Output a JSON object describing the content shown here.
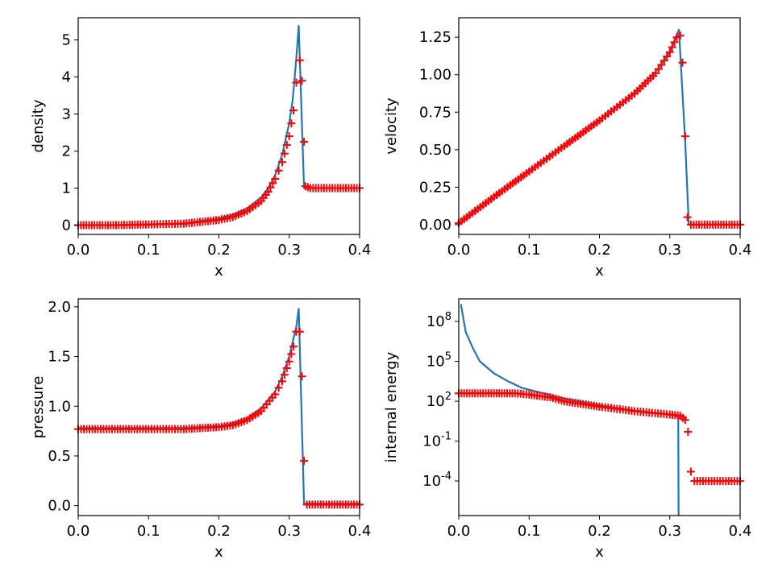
{
  "chart_data": [
    {
      "type": "line",
      "xlabel": "x",
      "ylabel": "density",
      "xlim": [
        0,
        0.4
      ],
      "ylim": [
        -0.25,
        5.6
      ],
      "xticks": [
        0,
        0.1,
        0.2,
        0.3,
        0.4
      ],
      "xticklabels": [
        "0.0",
        "0.1",
        "0.2",
        "0.3",
        "0.4"
      ],
      "yticks": [
        0,
        1,
        2,
        3,
        4,
        5
      ],
      "yticklabels": [
        "0",
        "1",
        "2",
        "3",
        "4",
        "5"
      ],
      "yscale": "linear",
      "series": [
        {
          "style": "line",
          "color": "#1f77b4",
          "points": [
            [
              0,
              0
            ],
            [
              0.05,
              0
            ],
            [
              0.1,
              0.01
            ],
            [
              0.15,
              0.05
            ],
            [
              0.2,
              0.18
            ],
            [
              0.22,
              0.28
            ],
            [
              0.24,
              0.45
            ],
            [
              0.26,
              0.75
            ],
            [
              0.27,
              1.0
            ],
            [
              0.28,
              1.35
            ],
            [
              0.29,
              1.9
            ],
            [
              0.3,
              2.75
            ],
            [
              0.305,
              3.4
            ],
            [
              0.31,
              4.5
            ],
            [
              0.3135,
              5.38
            ],
            [
              0.321,
              1.0
            ],
            [
              0.4,
              1.0
            ]
          ]
        },
        {
          "style": "marker",
          "color": "#ff0000",
          "marker": "+",
          "points": [
            [
              0,
              0.0
            ],
            [
              0.05,
              0.0
            ],
            [
              0.1,
              0.02
            ],
            [
              0.15,
              0.04
            ],
            [
              0.2,
              0.14
            ],
            [
              0.22,
              0.22
            ],
            [
              0.24,
              0.38
            ],
            [
              0.26,
              0.65
            ],
            [
              0.27,
              0.9
            ],
            [
              0.28,
              1.25
            ],
            [
              0.29,
              1.7
            ],
            [
              0.3,
              2.4
            ],
            [
              0.306,
              3.1
            ],
            [
              0.31,
              3.85
            ],
            [
              0.315,
              4.45
            ],
            [
              0.318,
              3.9
            ],
            [
              0.321,
              2.25
            ],
            [
              0.323,
              1.05
            ],
            [
              0.33,
              1.0
            ],
            [
              0.4,
              1.0
            ]
          ]
        }
      ]
    },
    {
      "type": "line",
      "xlabel": "x",
      "ylabel": "velocity",
      "xlim": [
        0,
        0.4
      ],
      "ylim": [
        -0.065,
        1.38
      ],
      "xticks": [
        0,
        0.1,
        0.2,
        0.3,
        0.4
      ],
      "xticklabels": [
        "0.0",
        "0.1",
        "0.2",
        "0.3",
        "0.4"
      ],
      "yticks": [
        0,
        0.25,
        0.5,
        0.75,
        1.0,
        1.25
      ],
      "yticklabels": [
        "0.00",
        "0.25",
        "0.50",
        "0.75",
        "1.00",
        "1.25"
      ],
      "yscale": "linear",
      "series": [
        {
          "style": "line",
          "color": "#1f77b4",
          "points": [
            [
              0,
              0
            ],
            [
              0.05,
              0.19
            ],
            [
              0.1,
              0.36
            ],
            [
              0.15,
              0.53
            ],
            [
              0.2,
              0.7
            ],
            [
              0.25,
              0.88
            ],
            [
              0.28,
              1.02
            ],
            [
              0.3,
              1.15
            ],
            [
              0.313,
              1.3
            ],
            [
              0.322,
              0.55
            ],
            [
              0.327,
              0
            ],
            [
              0.4,
              0
            ]
          ]
        },
        {
          "style": "marker",
          "color": "#ff0000",
          "marker": "+",
          "points": [
            [
              0,
              0.01
            ],
            [
              0.05,
              0.185
            ],
            [
              0.1,
              0.355
            ],
            [
              0.15,
              0.525
            ],
            [
              0.2,
              0.695
            ],
            [
              0.25,
              0.875
            ],
            [
              0.28,
              1.01
            ],
            [
              0.3,
              1.15
            ],
            [
              0.31,
              1.25
            ],
            [
              0.315,
              1.26
            ],
            [
              0.318,
              1.08
            ],
            [
              0.322,
              0.59
            ],
            [
              0.325,
              0.05
            ],
            [
              0.33,
              0
            ],
            [
              0.4,
              0
            ]
          ]
        }
      ]
    },
    {
      "type": "line",
      "xlabel": "x",
      "ylabel": "pressure",
      "xlim": [
        0,
        0.4
      ],
      "ylim": [
        -0.1,
        2.08
      ],
      "xticks": [
        0,
        0.1,
        0.2,
        0.3,
        0.4
      ],
      "xticklabels": [
        "0.0",
        "0.1",
        "0.2",
        "0.3",
        "0.4"
      ],
      "yticks": [
        0,
        0.5,
        1.0,
        1.5,
        2.0
      ],
      "yticklabels": [
        "0.0",
        "0.5",
        "1.0",
        "1.5",
        "2.0"
      ],
      "yscale": "linear",
      "series": [
        {
          "style": "line",
          "color": "#1f77b4",
          "points": [
            [
              0,
              0.78
            ],
            [
              0.1,
              0.78
            ],
            [
              0.15,
              0.78
            ],
            [
              0.2,
              0.8
            ],
            [
              0.22,
              0.83
            ],
            [
              0.24,
              0.88
            ],
            [
              0.26,
              0.98
            ],
            [
              0.28,
              1.15
            ],
            [
              0.29,
              1.3
            ],
            [
              0.3,
              1.5
            ],
            [
              0.31,
              1.8
            ],
            [
              0.3135,
              1.98
            ],
            [
              0.321,
              0.02
            ],
            [
              0.4,
              0.02
            ]
          ]
        },
        {
          "style": "marker",
          "color": "#ff0000",
          "marker": "+",
          "points": [
            [
              0,
              0.77
            ],
            [
              0.1,
              0.77
            ],
            [
              0.15,
              0.77
            ],
            [
              0.2,
              0.79
            ],
            [
              0.22,
              0.81
            ],
            [
              0.24,
              0.86
            ],
            [
              0.26,
              0.95
            ],
            [
              0.28,
              1.12
            ],
            [
              0.29,
              1.25
            ],
            [
              0.3,
              1.45
            ],
            [
              0.306,
              1.6
            ],
            [
              0.31,
              1.75
            ],
            [
              0.315,
              1.75
            ],
            [
              0.318,
              1.3
            ],
            [
              0.321,
              0.45
            ],
            [
              0.325,
              0.01
            ],
            [
              0.4,
              0.01
            ]
          ]
        }
      ]
    },
    {
      "type": "line",
      "xlabel": "x",
      "ylabel": "internal energy",
      "xlim": [
        0,
        0.4
      ],
      "ylim": [
        -6.6,
        9.7
      ],
      "xticks": [
        0,
        0.1,
        0.2,
        0.3,
        0.4
      ],
      "xticklabels": [
        "0.0",
        "0.1",
        "0.2",
        "0.3",
        "0.4"
      ],
      "yticks": [
        -4,
        -1,
        2,
        5,
        8
      ],
      "ytick_base": "10",
      "ytick_exponents": [
        "-4",
        "-1",
        "2",
        "5",
        "8"
      ],
      "yscale": "log",
      "series": [
        {
          "style": "line",
          "color": "#1f77b4",
          "points_log10": [
            [
              0.003,
              9.3
            ],
            [
              0.01,
              7.2
            ],
            [
              0.02,
              6.0
            ],
            [
              0.03,
              5.0
            ],
            [
              0.05,
              4.1
            ],
            [
              0.07,
              3.5
            ],
            [
              0.09,
              3.0
            ],
            [
              0.12,
              2.6
            ],
            [
              0.15,
              2.2
            ],
            [
              0.2,
              1.7
            ],
            [
              0.25,
              1.3
            ],
            [
              0.3,
              1.0
            ],
            [
              0.312,
              0.85
            ],
            [
              0.3125,
              -7.0
            ]
          ]
        },
        {
          "style": "marker",
          "color": "#ff0000",
          "marker": "+",
          "points_log10": [
            [
              0,
              2.6
            ],
            [
              0.05,
              2.6
            ],
            [
              0.08,
              2.6
            ],
            [
              0.1,
              2.5
            ],
            [
              0.13,
              2.3
            ],
            [
              0.15,
              2.0
            ],
            [
              0.2,
              1.6
            ],
            [
              0.25,
              1.25
            ],
            [
              0.3,
              1.0
            ],
            [
              0.315,
              0.9
            ],
            [
              0.322,
              0.6
            ],
            [
              0.326,
              -0.3
            ],
            [
              0.33,
              -3.3
            ],
            [
              0.335,
              -4.0
            ],
            [
              0.4,
              -4.0
            ]
          ]
        }
      ]
    }
  ]
}
